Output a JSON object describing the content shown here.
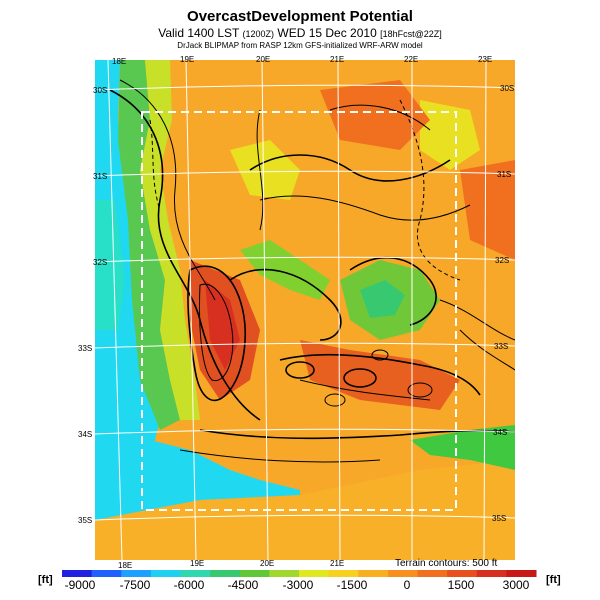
{
  "header": {
    "title": "OvercastDevelopment Potential",
    "valid_line": "Valid 1400 LST",
    "valid_code": "(1200Z)",
    "valid_date": "WED 15 Dec 2010",
    "forecast_tag": "[18hFcst@22Z]",
    "credit": "DrJack BLIPMAP from RASP 12km GFS-initialized WRF-ARW model"
  },
  "map": {
    "lon_labels_top": [
      "18E",
      "19E",
      "20E",
      "21E",
      "22E",
      "23E"
    ],
    "lon_labels_bottom": [
      "18E",
      "19E",
      "20E",
      "21E"
    ],
    "lat_labels_left": [
      "30S",
      "31S",
      "32S",
      "33S",
      "34S",
      "35S"
    ],
    "lat_labels_right": [
      "30S",
      "31S",
      "32S",
      "33S",
      "34S",
      "35S"
    ],
    "terrain_note": "Terrain contours: 500 ft"
  },
  "legend": {
    "unit_left": "[ft]",
    "unit_right": "[ft]",
    "ticks": [
      "-9000",
      "-7500",
      "-6000",
      "-4500",
      "-3000",
      "-1500",
      "0",
      "1500",
      "3000"
    ],
    "colors": [
      "#2020e0",
      "#2060ff",
      "#1ea0ff",
      "#20d0f0",
      "#30d8b0",
      "#38c870",
      "#60c838",
      "#a0d830",
      "#e0e820",
      "#f8d020",
      "#f8b020",
      "#f89020",
      "#f07020",
      "#e85020",
      "#d83020",
      "#c81818"
    ]
  }
}
